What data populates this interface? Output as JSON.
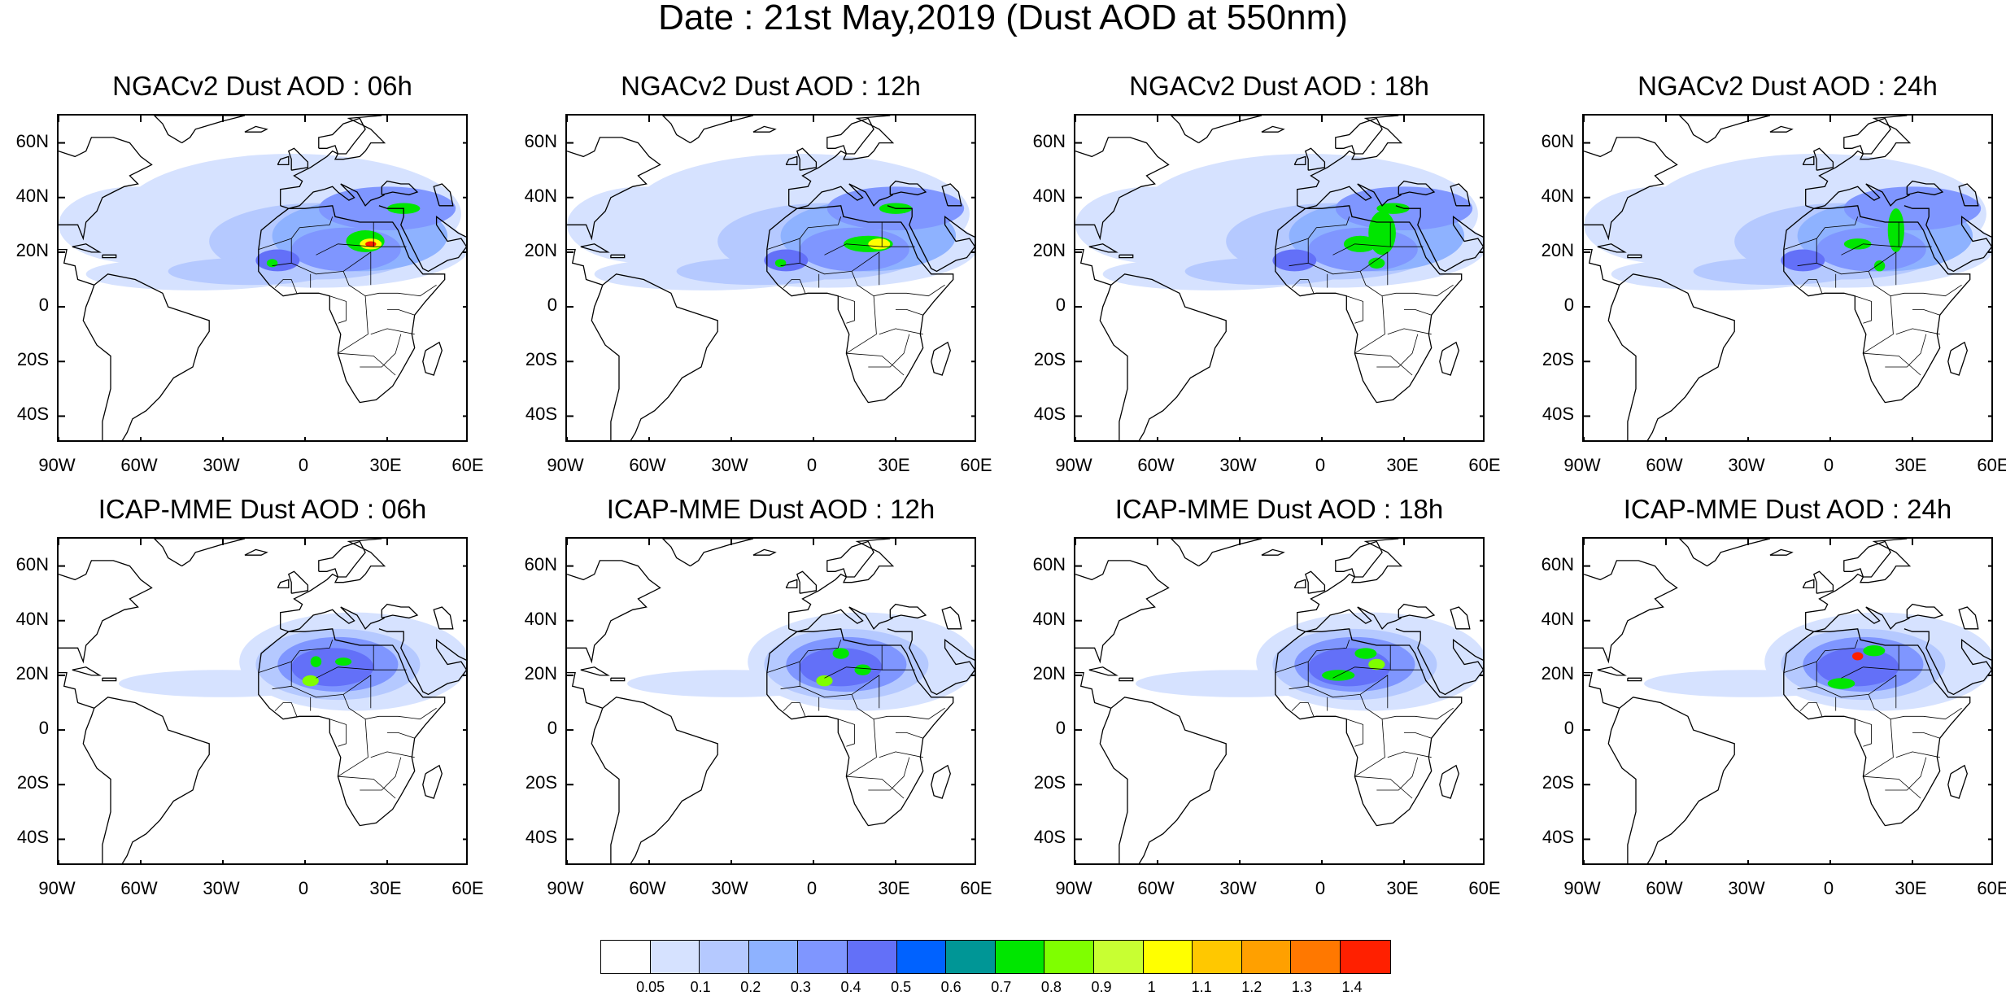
{
  "title": "Date : 21st May,2019 (Dust AOD at 550nm)",
  "panels": [
    {
      "title": "NGACv2 Dust AOD : 06h",
      "model": "NGAC",
      "hour": "06h"
    },
    {
      "title": "NGACv2 Dust AOD : 12h",
      "model": "NGAC",
      "hour": "12h"
    },
    {
      "title": "NGACv2 Dust AOD : 18h",
      "model": "NGAC",
      "hour": "18h"
    },
    {
      "title": "NGACv2 Dust AOD : 24h",
      "model": "NGAC",
      "hour": "24h"
    },
    {
      "title": "ICAP-MME Dust AOD : 06h",
      "model": "ICAP",
      "hour": "06h"
    },
    {
      "title": "ICAP-MME Dust AOD : 12h",
      "model": "ICAP",
      "hour": "12h"
    },
    {
      "title": "ICAP-MME Dust AOD : 18h",
      "model": "ICAP",
      "hour": "18h"
    },
    {
      "title": "ICAP-MME Dust AOD : 24h",
      "model": "ICAP",
      "hour": "24h"
    }
  ],
  "axes": {
    "lat_labels": [
      "60N",
      "40N",
      "20N",
      "0",
      "20S",
      "40S"
    ],
    "lat_values": [
      60,
      40,
      20,
      0,
      -20,
      -40
    ],
    "lon_labels": [
      "90W",
      "60W",
      "30W",
      "0",
      "30E",
      "60E"
    ],
    "lon_values": [
      -90,
      -60,
      -30,
      0,
      30,
      60
    ],
    "lat_range": [
      -50,
      70
    ],
    "lon_range": [
      -90,
      60
    ]
  },
  "colorbar": {
    "labels": [
      "0.05",
      "0.1",
      "0.2",
      "0.3",
      "0.4",
      "0.5",
      "0.6",
      "0.7",
      "0.8",
      "0.9",
      "1",
      "1.1",
      "1.2",
      "1.3",
      "1.4"
    ],
    "colors": [
      "#ffffff",
      "#d6e2ff",
      "#b5c9ff",
      "#8eb2ff",
      "#7f96ff",
      "#6370f8",
      "#0062ff",
      "#009696",
      "#00e600",
      "#7fff00",
      "#c8ff32",
      "#ffff00",
      "#ffc800",
      "#ffa000",
      "#ff7800",
      "#ff2000"
    ]
  }
}
